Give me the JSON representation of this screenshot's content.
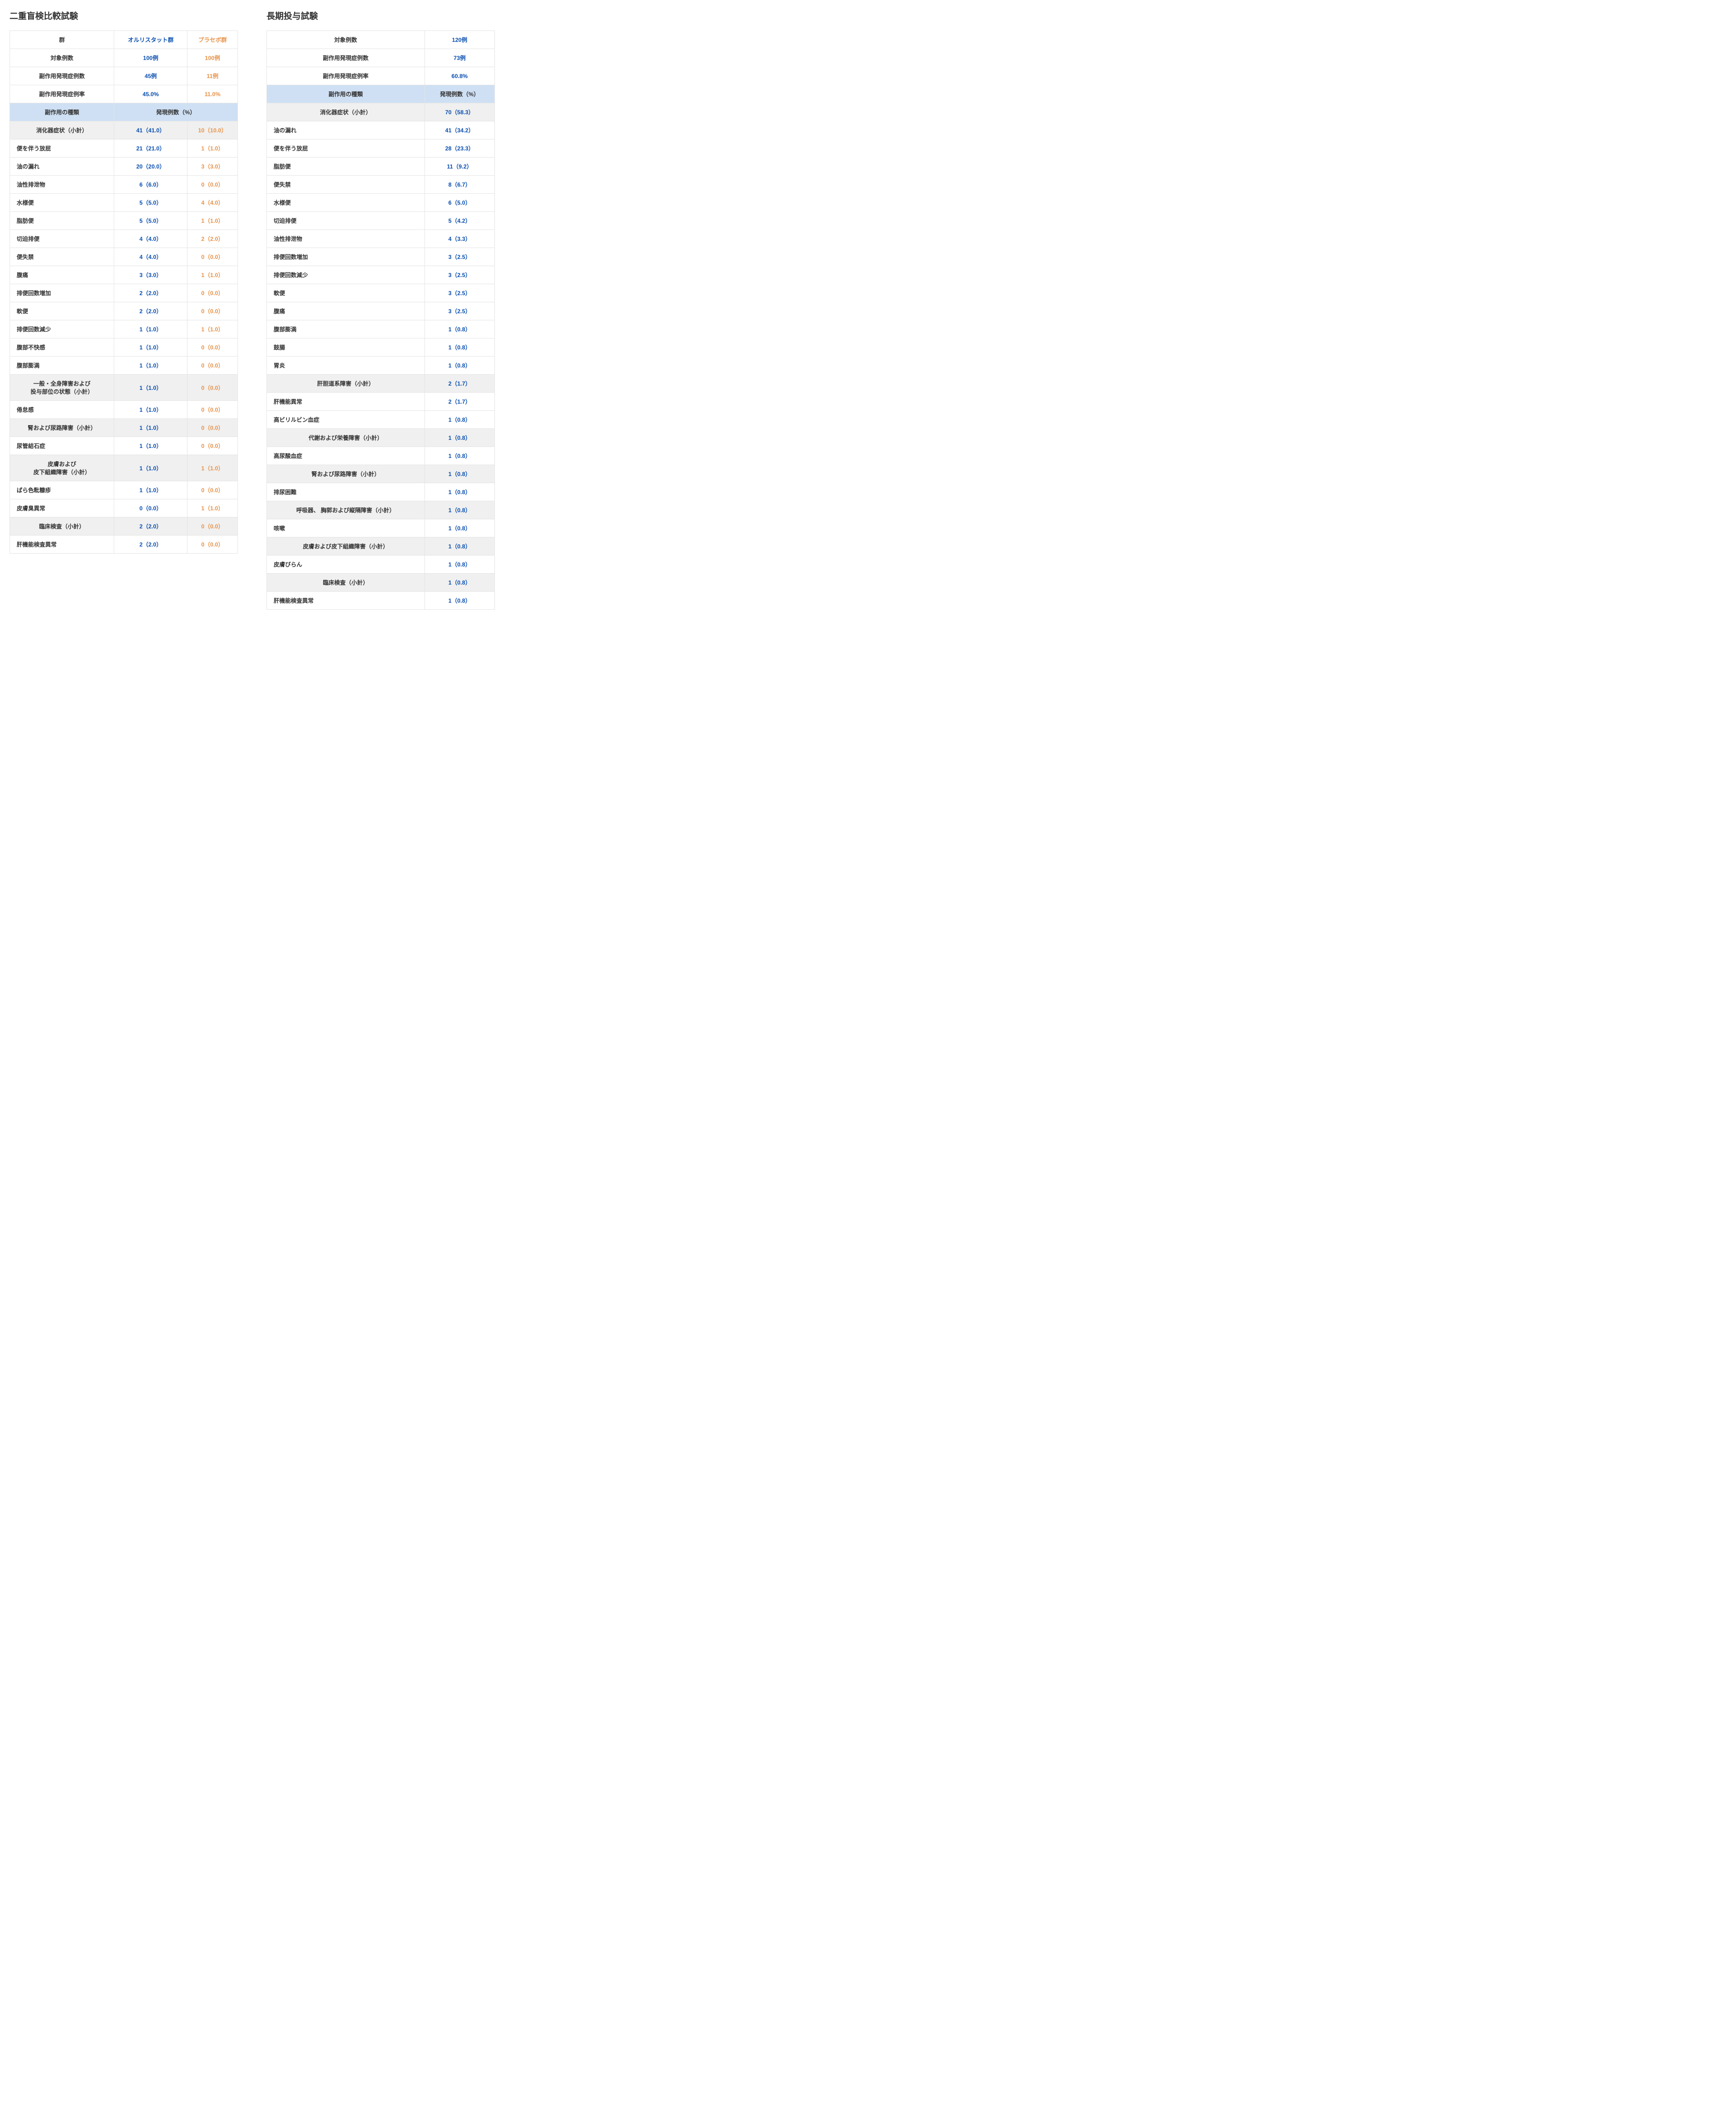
{
  "left": {
    "title": "二重盲検比較試験",
    "headers": {
      "group": "群",
      "orlistat": "オルリスタット群",
      "placebo": "プラセボ群"
    },
    "summary": [
      {
        "label": "対象例数",
        "v1": "100例",
        "v2": "100例"
      },
      {
        "label": "副作用発現症例数",
        "v1": "45例",
        "v2": "11例"
      },
      {
        "label": "副作用発現症例率",
        "v1": "45.0%",
        "v2": "11.0%"
      }
    ],
    "sub": {
      "l": "副作用の種類",
      "r": "発現例数（%）"
    },
    "rows": [
      {
        "t": "st",
        "label": "消化器症状（小計）",
        "v1": "41（41.0）",
        "v2": "10（10.0）"
      },
      {
        "label": "便を伴う放屁",
        "v1": "21（21.0）",
        "v2": "1（1.0）"
      },
      {
        "label": "油の漏れ",
        "v1": "20（20.0）",
        "v2": "3（3.0）"
      },
      {
        "label": "油性排泄物",
        "v1": "6（6.0）",
        "v2": "0（0.0）"
      },
      {
        "label": "水様便",
        "v1": "5（5.0）",
        "v2": "4（4.0）"
      },
      {
        "label": "脂肪便",
        "v1": "5（5.0）",
        "v2": "1（1.0）"
      },
      {
        "label": "切迫排便",
        "v1": "4（4.0）",
        "v2": "2（2.0）"
      },
      {
        "label": "便失禁",
        "v1": "4（4.0）",
        "v2": "0（0.0）"
      },
      {
        "label": "腹痛",
        "v1": "3（3.0）",
        "v2": "1（1.0）"
      },
      {
        "label": "排便回数増加",
        "v1": "2（2.0）",
        "v2": "0（0.0）"
      },
      {
        "label": "軟便",
        "v1": "2（2.0）",
        "v2": "0（0.0）"
      },
      {
        "label": "排便回数減少",
        "v1": "1（1.0）",
        "v2": "1（1.0）"
      },
      {
        "label": "腹部不快感",
        "v1": "1（1.0）",
        "v2": "0（0.0）"
      },
      {
        "label": "腹部膨満",
        "v1": "1（1.0）",
        "v2": "0（0.0）"
      },
      {
        "t": "st",
        "label": "一般・全身障害および\n投与部位の状態（小計）",
        "v1": "1（1.0）",
        "v2": "0（0.0）"
      },
      {
        "label": "倦怠感",
        "v1": "1（1.0）",
        "v2": "0（0.0）"
      },
      {
        "t": "st",
        "label": "腎および尿路障害（小計）",
        "v1": "1（1.0）",
        "v2": "0（0.0）"
      },
      {
        "label": "尿管結石症",
        "v1": "1（1.0）",
        "v2": "0（0.0）"
      },
      {
        "t": "st",
        "label": "皮膚および\n皮下組織障害（小計）",
        "v1": "1（1.0）",
        "v2": "1（1.0）"
      },
      {
        "label": "ばら色粃糠疹",
        "v1": "1（1.0）",
        "v2": "0（0.0）"
      },
      {
        "label": "皮膚臭異常",
        "v1": "0（0.0）",
        "v2": "1（1.0）"
      },
      {
        "t": "st",
        "label": "臨床検査（小計）",
        "v1": "2（2.0）",
        "v2": "0（0.0）"
      },
      {
        "label": "肝機能検査異常",
        "v1": "2（2.0）",
        "v2": "0（0.0）"
      }
    ]
  },
  "right": {
    "title": "長期投与試験",
    "summary": [
      {
        "label": "対象例数",
        "v": "120例"
      },
      {
        "label": "副作用発現症例数",
        "v": "73例"
      },
      {
        "label": "副作用発現症例率",
        "v": "60.8%"
      }
    ],
    "sub": {
      "l": "副作用の種類",
      "r": "発現例数（%）"
    },
    "rows": [
      {
        "t": "st",
        "label": "消化器症状（小計）",
        "v": "70（58.3）"
      },
      {
        "label": "油の漏れ",
        "v": "41（34.2）"
      },
      {
        "label": "便を伴う放屁",
        "v": "28（23.3）"
      },
      {
        "label": "脂肪便",
        "v": "11（9.2）"
      },
      {
        "label": "便失禁",
        "v": "8（6.7）"
      },
      {
        "label": "水様便",
        "v": "6（5.0）"
      },
      {
        "label": "切迫排便",
        "v": "5（4.2）"
      },
      {
        "label": "油性排泄物",
        "v": "4（3.3）"
      },
      {
        "label": "排便回数増加",
        "v": "3（2.5）"
      },
      {
        "label": "排便回数減少",
        "v": "3（2.5）"
      },
      {
        "label": "軟便",
        "v": "3（2.5）"
      },
      {
        "label": "腹痛",
        "v": "3（2.5）"
      },
      {
        "label": "腹部膨満",
        "v": "1（0.8）"
      },
      {
        "label": "鼓腸",
        "v": "1（0.8）"
      },
      {
        "label": "胃炎",
        "v": "1（0.8）"
      },
      {
        "t": "st",
        "label": "肝胆道系障害（小計）",
        "v": "2（1.7）"
      },
      {
        "label": "肝機能異常",
        "v": "2（1.7）"
      },
      {
        "label": "高ビリルビン血症",
        "v": "1（0.8）"
      },
      {
        "t": "st",
        "label": "代謝および栄養障害（小計）",
        "v": "1（0.8）"
      },
      {
        "label": "高尿酸血症",
        "v": "1（0.8）"
      },
      {
        "t": "st",
        "label": "腎および尿路障害（小計）",
        "v": "1（0.8）"
      },
      {
        "label": "排尿困難",
        "v": "1（0.8）"
      },
      {
        "t": "st",
        "label": "呼吸器、 胸郭および縦隔障害（小計）",
        "v": "1（0.8）"
      },
      {
        "label": "咳嗽",
        "v": "1（0.8）"
      },
      {
        "t": "st",
        "label": "皮膚および皮下組織障害（小計）",
        "v": "1（0.8）"
      },
      {
        "label": "皮膚びらん",
        "v": "1（0.8）"
      },
      {
        "t": "st",
        "label": "臨床検査（小計）",
        "v": "1（0.8）"
      },
      {
        "label": "肝機能検査異常",
        "v": "1（0.8）"
      }
    ]
  }
}
